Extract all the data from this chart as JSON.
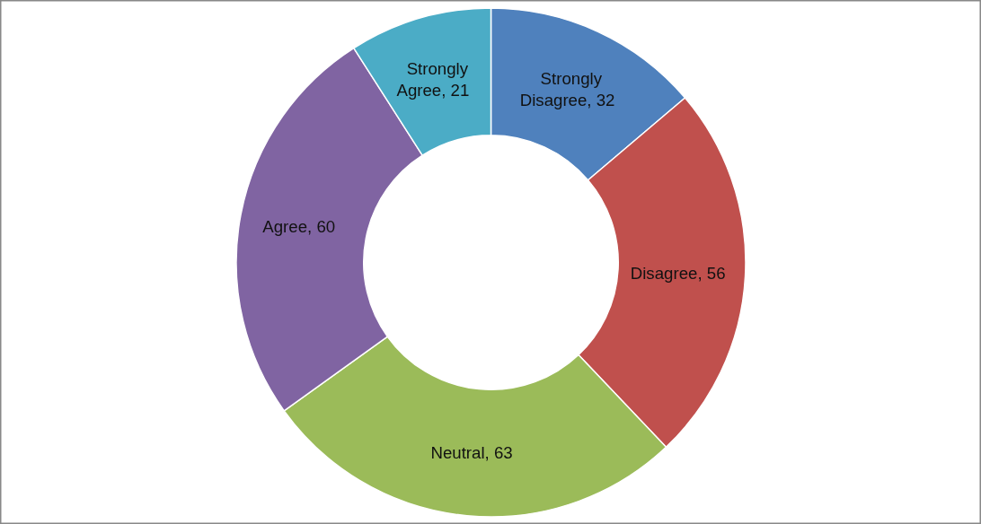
{
  "chart_data": {
    "type": "donut",
    "categories": [
      "Strongly Disagree",
      "Disagree",
      "Neutral",
      "Agree",
      "Strongly Agree"
    ],
    "values": [
      32,
      56,
      63,
      60,
      21
    ],
    "colors": [
      "#4f81bd",
      "#c0504d",
      "#9bbb59",
      "#8064a2",
      "#4bacc6"
    ],
    "value_labels": [
      ", 32",
      ", 56",
      ", 63",
      ", 60",
      ", 21"
    ]
  }
}
